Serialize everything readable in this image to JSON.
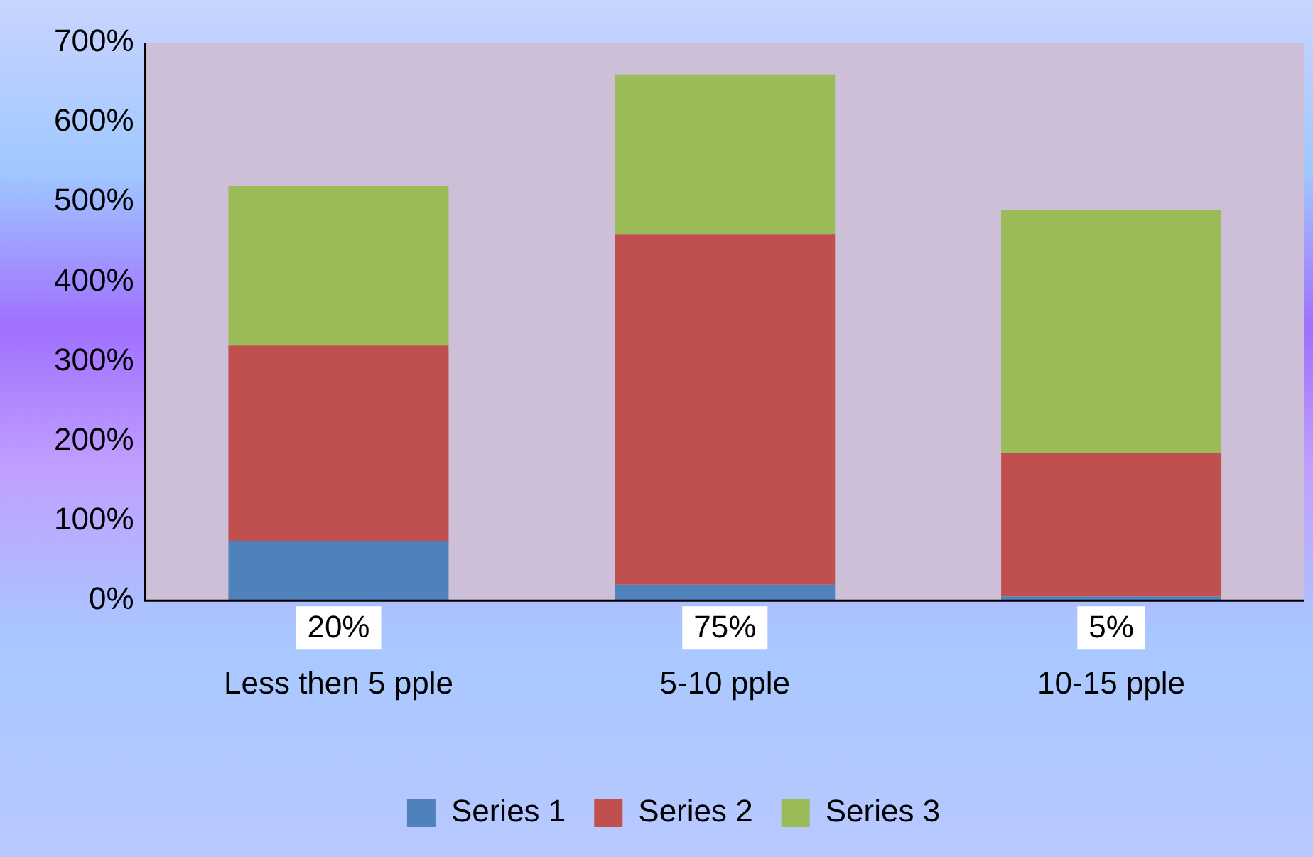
{
  "chart_data": {
    "type": "bar",
    "stacked": true,
    "categories": [
      "Less then 5 pple",
      "5-10 pple",
      "10-15 pple"
    ],
    "series": [
      {
        "name": "Series 1",
        "color": "#4f81bd",
        "values": [
          75,
          20,
          5
        ]
      },
      {
        "name": "Series 2",
        "color": "#c0504d",
        "values": [
          245,
          440,
          180
        ]
      },
      {
        "name": "Series 3",
        "color": "#9bbb59",
        "values": [
          200,
          200,
          305
        ]
      }
    ],
    "ylim": [
      0,
      700
    ],
    "yticks": [
      {
        "value": 0,
        "label": "0%"
      },
      {
        "value": 100,
        "label": "100%"
      },
      {
        "value": 200,
        "label": "200%"
      },
      {
        "value": 300,
        "label": "300%"
      },
      {
        "value": 400,
        "label": "400%"
      },
      {
        "value": 500,
        "label": "500%"
      },
      {
        "value": 600,
        "label": "600%"
      },
      {
        "value": 700,
        "label": "700%"
      }
    ],
    "annotations": [
      "20%",
      "75%",
      "5%"
    ],
    "grid": false,
    "legend": "bottom"
  }
}
